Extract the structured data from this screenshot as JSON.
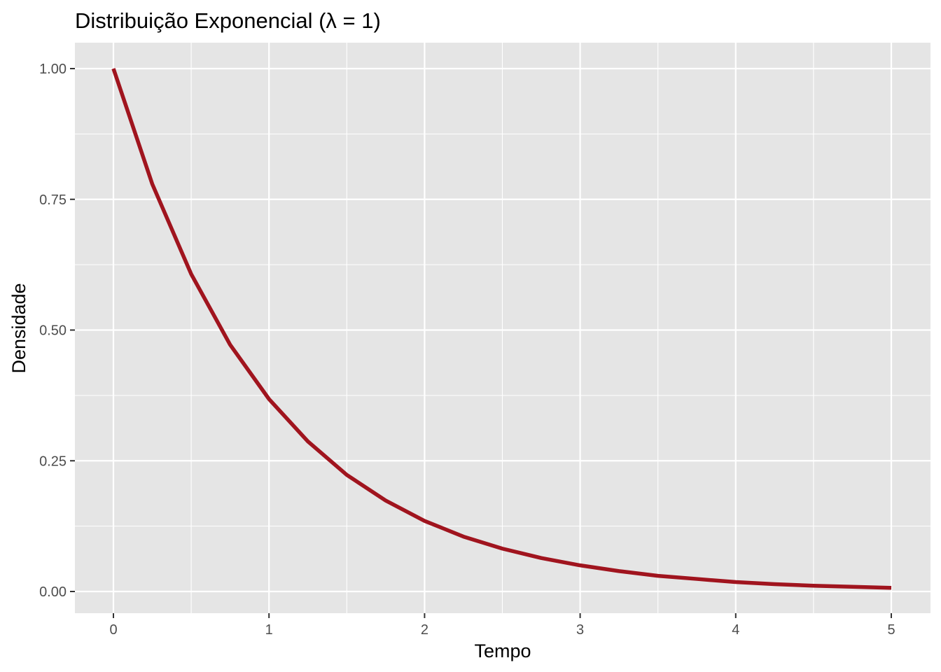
{
  "chart_data": {
    "type": "line",
    "title": "Distribuição Exponencial (λ = 1)",
    "xlabel": "Tempo",
    "ylabel": "Densidade",
    "xlim": [
      0,
      5
    ],
    "ylim": [
      0,
      1
    ],
    "x_ticks": [
      "0",
      "1",
      "2",
      "3",
      "4",
      "5"
    ],
    "y_ticks": [
      "0.00",
      "0.25",
      "0.50",
      "0.75",
      "1.00"
    ],
    "grid": true,
    "legend": "none",
    "series": [
      {
        "color": "#a0141e",
        "x": [
          0,
          0.25,
          0.5,
          0.75,
          1,
          1.25,
          1.5,
          1.75,
          2,
          2.25,
          2.5,
          2.75,
          3,
          3.25,
          3.5,
          3.75,
          4,
          4.25,
          4.5,
          4.75,
          5
        ],
        "y": [
          1.0,
          0.779,
          0.607,
          0.472,
          0.368,
          0.287,
          0.223,
          0.174,
          0.135,
          0.105,
          0.082,
          0.064,
          0.05,
          0.039,
          0.03,
          0.024,
          0.018,
          0.014,
          0.011,
          0.009,
          0.007
        ]
      }
    ]
  },
  "colors": {
    "panel_background": "#e5e5e5",
    "grid": "#ffffff",
    "line": "#a0141e"
  }
}
